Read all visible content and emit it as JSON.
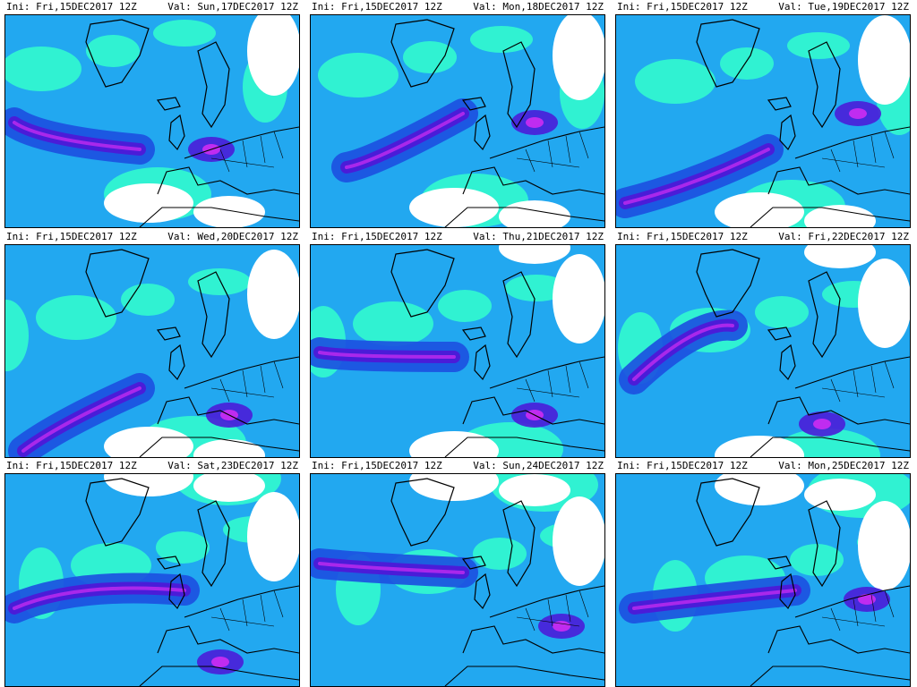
{
  "colors": {
    "field_low": "#33ffcc",
    "field_mid": "#22a8f0",
    "field_high": "#1c4fe0",
    "field_core": "#4a1cd8",
    "field_peak": "#c02cf0",
    "coast": "#000000",
    "background": "#ffffff"
  },
  "panels": [
    {
      "ini": "Ini: Fri,15DEC2017 12Z",
      "val": "Val: Sun,17DEC2017 12Z"
    },
    {
      "ini": "Ini: Fri,15DEC2017 12Z",
      "val": "Val: Mon,18DEC2017 12Z"
    },
    {
      "ini": "Ini: Fri,15DEC2017 12Z",
      "val": "Val: Tue,19DEC2017 12Z"
    },
    {
      "ini": "Ini: Fri,15DEC2017 12Z",
      "val": "Val: Wed,20DEC2017 12Z"
    },
    {
      "ini": "Ini: Fri,15DEC2017 12Z",
      "val": "Val: Thu,21DEC2017 12Z"
    },
    {
      "ini": "Ini: Fri,15DEC2017 12Z",
      "val": "Val: Fri,22DEC2017 12Z"
    },
    {
      "ini": "Ini: Fri,15DEC2017 12Z",
      "val": "Val: Sat,23DEC2017 12Z"
    },
    {
      "ini": "Ini: Fri,15DEC2017 12Z",
      "val": "Val: Sun,24DEC2017 12Z"
    },
    {
      "ini": "Ini: Fri,15DEC2017 12Z",
      "val": "Val: Mon,25DEC2017 12Z"
    }
  ]
}
